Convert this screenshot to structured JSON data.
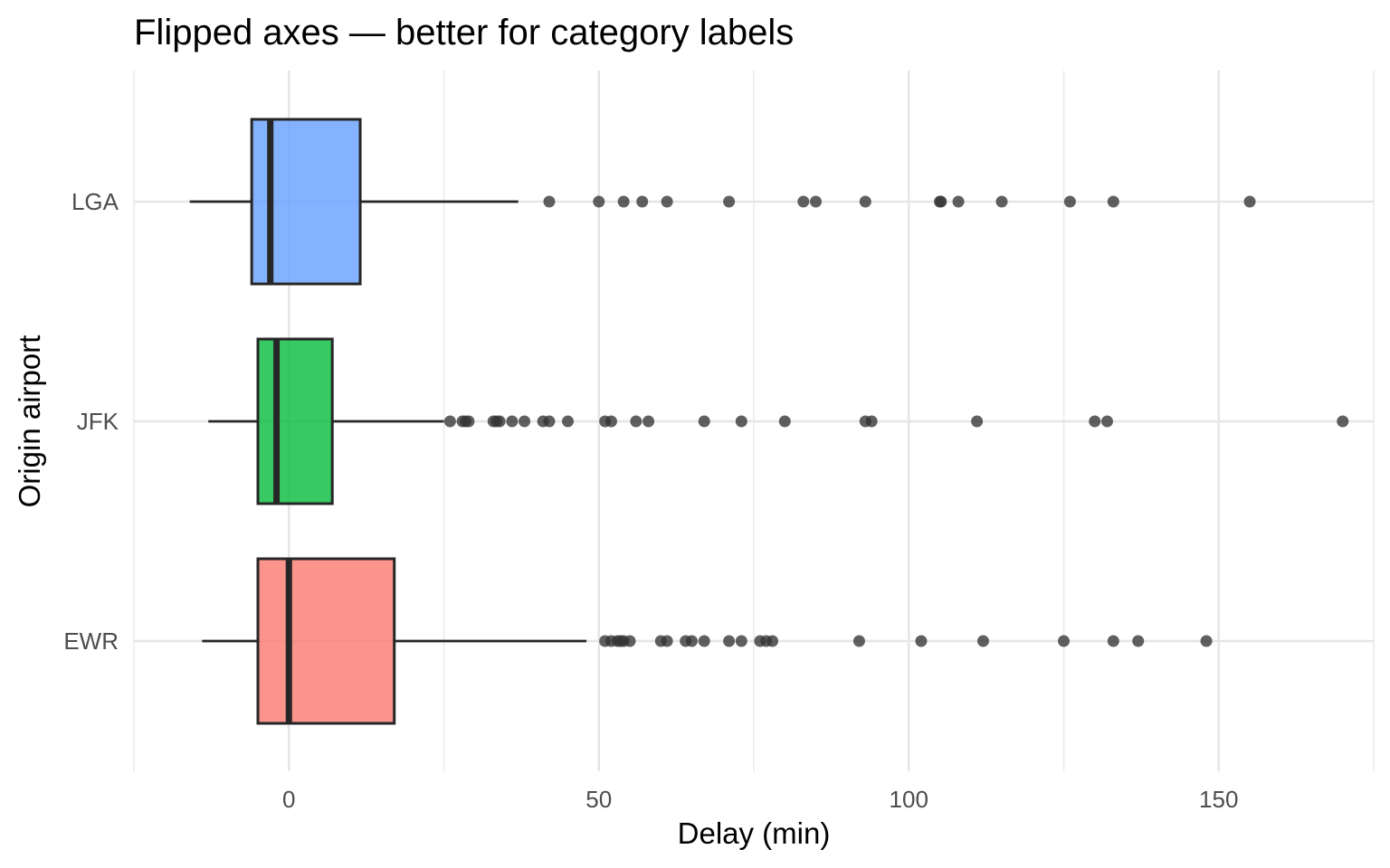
{
  "chart_data": {
    "type": "boxplot",
    "orientation": "horizontal",
    "title": "Flipped axes — better for category labels",
    "xlabel": "Delay (min)",
    "ylabel": "Origin airport",
    "xlim": [
      -25,
      175
    ],
    "x_ticks": [
      0,
      50,
      100,
      150
    ],
    "x_tick_labels": [
      "0",
      "50",
      "100",
      "150"
    ],
    "x_minor_ticks": [
      -25,
      25,
      75,
      125,
      175
    ],
    "grid": true,
    "legend": "none",
    "categories": [
      "EWR",
      "JFK",
      "LGA"
    ],
    "boxes": [
      {
        "name": "EWR",
        "color": "#F8766D",
        "whisker_low": -14,
        "q1": -5,
        "median": 0,
        "q3": 17,
        "whisker_high": 48,
        "outliers": [
          51,
          52,
          53,
          53.5,
          54,
          55,
          60,
          61,
          64,
          65,
          67,
          71,
          73,
          76,
          77,
          78,
          92,
          102,
          112,
          125,
          133,
          137,
          148
        ]
      },
      {
        "name": "JFK",
        "color": "#00BA38",
        "whisker_low": -13,
        "q1": -5,
        "median": -2,
        "q3": 7,
        "whisker_high": 25,
        "outliers": [
          26,
          28,
          28.5,
          29,
          33,
          33.5,
          34,
          36,
          38,
          41,
          42,
          45,
          51,
          52,
          56,
          58,
          67,
          73,
          80,
          93,
          94,
          111,
          130,
          132,
          170
        ]
      },
      {
        "name": "LGA",
        "color": "#619CFF",
        "whisker_low": -16,
        "q1": -6,
        "median": -3,
        "q3": 11.5,
        "whisker_high": 37,
        "outliers": [
          42,
          50,
          54,
          57,
          61,
          71,
          83,
          85,
          93,
          105,
          105.2,
          108,
          115,
          126,
          133,
          155
        ]
      }
    ]
  }
}
